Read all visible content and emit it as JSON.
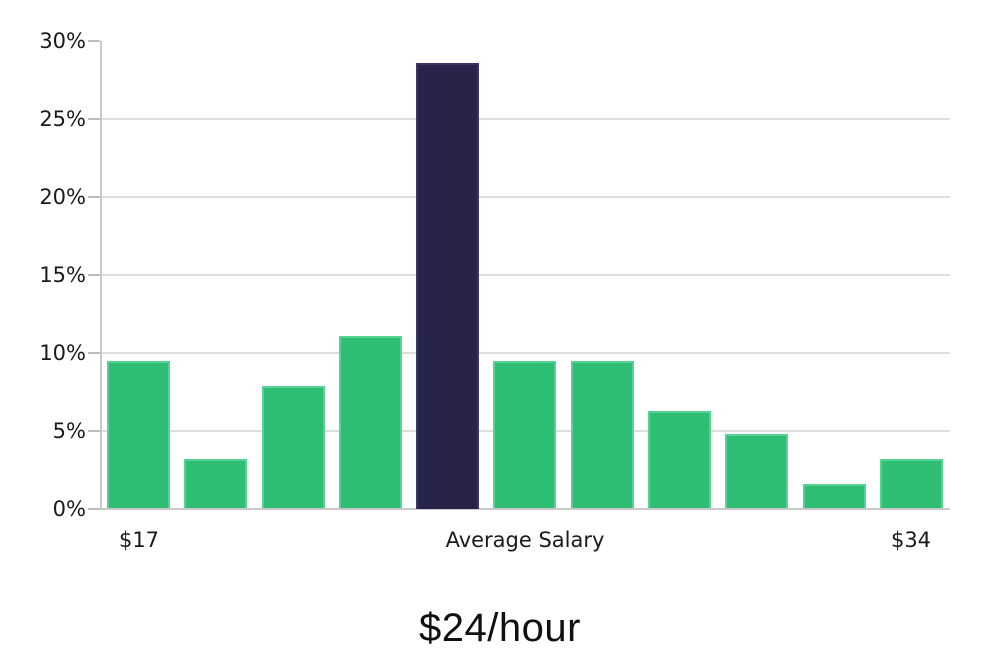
{
  "chart_data": {
    "type": "bar",
    "title": "$24/hour",
    "subtitle": "",
    "xlabel": "",
    "ylabel": "",
    "x_axis_labels": {
      "min": "$17",
      "center": "Average Salary",
      "max": "$34"
    },
    "y_ticks": [
      "0%",
      "5%",
      "10%",
      "15%",
      "20%",
      "25%",
      "30%"
    ],
    "ylim": [
      0,
      30
    ],
    "unit": "percent",
    "values": [
      9.5,
      3.2,
      7.9,
      11.1,
      28.6,
      9.5,
      9.5,
      6.3,
      4.8,
      1.6,
      3.2
    ],
    "highlight_index": 4,
    "legend": [],
    "grid": "horizontal",
    "colors": {
      "bar": "#2ebd72",
      "bar_border": "#57d295",
      "highlight": "#282348",
      "highlight_border": "#3b3464",
      "gridline": "#dcdcdc",
      "axis": "#c9c9c9",
      "tick": "#bdbdbd",
      "text": "#1a1a1a"
    }
  }
}
